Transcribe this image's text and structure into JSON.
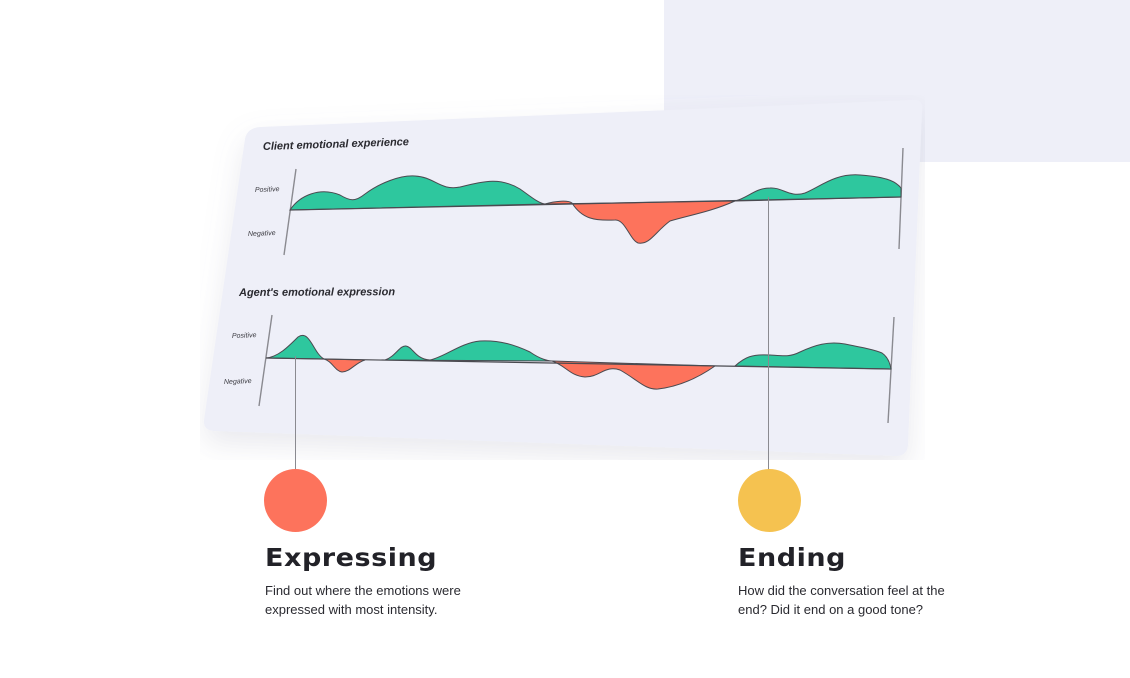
{
  "panels": [
    {
      "title": "Client emotional experience",
      "positive_label": "Positive",
      "negative_label": "Negative"
    },
    {
      "title": "Agent's emotional expression",
      "positive_label": "Positive",
      "negative_label": "Negative"
    }
  ],
  "features": [
    {
      "title": "Expressing",
      "description": "Find out where the emotions were expressed with most intensity.",
      "color": "#fd735c"
    },
    {
      "title": "Ending",
      "description": "How did the conversation feel at the end? Did it end on a good tone?",
      "color": "#f5c250"
    }
  ],
  "colors": {
    "positive": "#2ec79e",
    "negative": "#fd735c",
    "card": "#eeeff8",
    "accent_block": "#eeeff8"
  }
}
